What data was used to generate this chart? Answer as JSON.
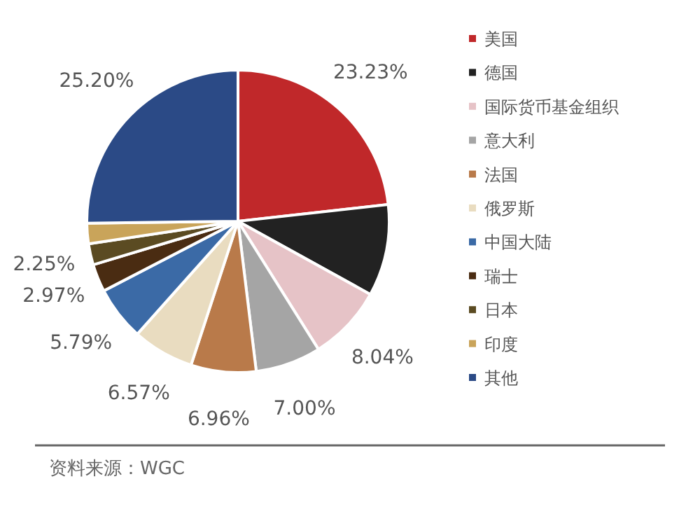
{
  "chart_data": {
    "type": "pie",
    "categories": [
      "美国",
      "德国",
      "国际货币基金组织",
      "意大利",
      "法国",
      "俄罗斯",
      "中国大陆",
      "瑞士",
      "日本",
      "印度",
      "其他"
    ],
    "values": [
      23.23,
      9.8,
      8.04,
      7.0,
      6.96,
      6.57,
      5.79,
      2.97,
      2.25,
      2.19,
      25.2
    ],
    "value_labels": [
      "23.23%",
      null,
      "8.04%",
      "7.00%",
      "6.96%",
      "6.57%",
      "5.79%",
      "2.97%",
      "2.25%",
      null,
      "25.20%"
    ],
    "colors": [
      "#c0282a",
      "#222222",
      "#e6c3c7",
      "#a5a5a5",
      "#b97a4a",
      "#e9dcc0",
      "#3b6aa6",
      "#4a2c12",
      "#5b4b22",
      "#c9a45a",
      "#2b4a86"
    ],
    "legend": "right",
    "annotations": [
      "资料来源：WGC"
    ]
  }
}
